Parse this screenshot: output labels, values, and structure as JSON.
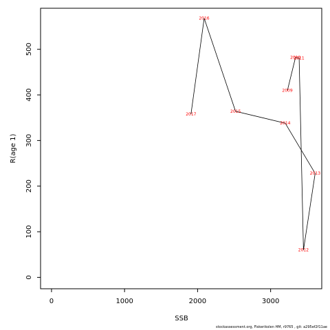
{
  "chart_data": {
    "type": "line",
    "xlabel": "SSB",
    "ylabel": "R(age 1)",
    "xlim": [
      -150,
      3700
    ],
    "ylim": [
      -25,
      590
    ],
    "x_ticks": [
      0,
      1000,
      2000,
      3000
    ],
    "y_ticks": [
      0,
      100,
      200,
      300,
      400,
      500
    ],
    "points": [
      {
        "year": "2009",
        "ssb": 3230,
        "recruitment": 410
      },
      {
        "year": "2010",
        "ssb": 3340,
        "recruitment": 482
      },
      {
        "year": "2011",
        "ssb": 3390,
        "recruitment": 481
      },
      {
        "year": "2012",
        "ssb": 3450,
        "recruitment": 60
      },
      {
        "year": "2013",
        "ssb": 3610,
        "recruitment": 228
      },
      {
        "year": "2014",
        "ssb": 3200,
        "recruitment": 338
      },
      {
        "year": "2015",
        "ssb": 2520,
        "recruitment": 364
      },
      {
        "year": "2016",
        "ssb": 2090,
        "recruitment": 568
      },
      {
        "year": "2017",
        "ssb": 1910,
        "recruitment": 358
      }
    ],
    "line_color": "#000000",
    "label_color": "#ff0000"
  },
  "footer": "stockassessment.org, Fiskerikolen  HM, r9765 , git: a295ef2f11ae"
}
